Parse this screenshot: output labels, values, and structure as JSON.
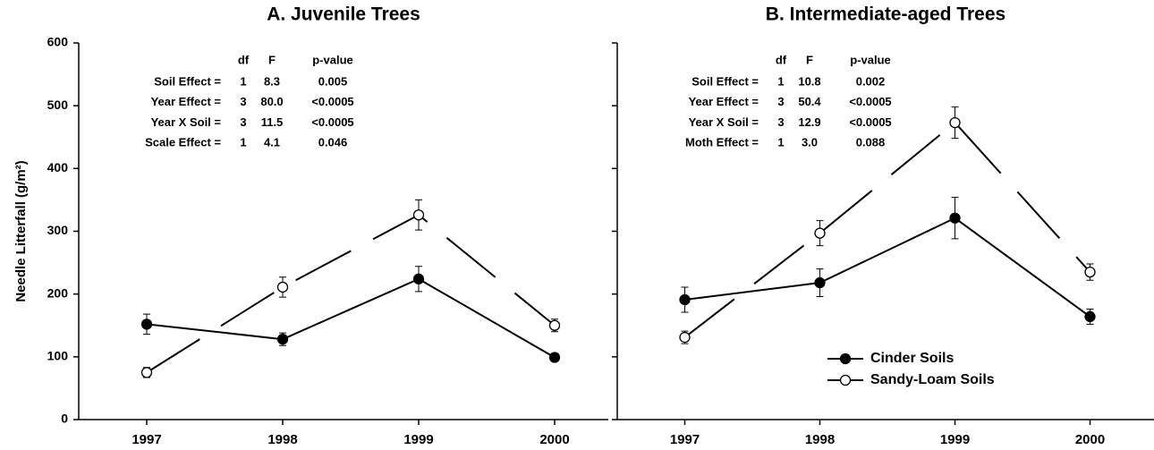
{
  "chart_data": [
    {
      "type": "line",
      "title": "A.  Juvenile Trees",
      "y_label": "Needle Litterfall (g/m²)",
      "categories": [
        "1997",
        "1998",
        "1999",
        "2000"
      ],
      "ylim": [
        0,
        600
      ],
      "yticks": [
        0,
        100,
        200,
        300,
        400,
        500,
        600
      ],
      "show_ytick_labels": true,
      "series": [
        {
          "color": "#000000",
          "marker": "filled",
          "values": [
            152,
            128,
            224,
            99
          ],
          "errors": [
            16,
            10,
            20,
            6
          ]
        },
        {
          "color": "#000000",
          "marker": "open",
          "dashed": true,
          "values": [
            75,
            211,
            326,
            150
          ],
          "errors": [
            8,
            16,
            24,
            10
          ]
        }
      ],
      "stats": {
        "columns": [
          "df",
          "F",
          "p-value"
        ],
        "rows": [
          [
            "Soil Effect =",
            "1",
            "8.3",
            "0.005"
          ],
          [
            "Year Effect =",
            "3",
            "80.0",
            "<0.0005"
          ],
          [
            "Year X Soil =",
            "3",
            "11.5",
            "<0.0005"
          ],
          [
            "Scale Effect =",
            "1",
            "4.1",
            "0.046"
          ]
        ]
      }
    },
    {
      "type": "line",
      "title": "B.  Intermediate-aged Trees",
      "categories": [
        "1997",
        "1998",
        "1999",
        "2000"
      ],
      "ylim": [
        0,
        600
      ],
      "yticks": [
        0,
        100,
        200,
        300,
        400,
        500,
        600
      ],
      "show_ytick_labels": false,
      "legend": "lower right",
      "series": [
        {
          "name": "Cinder Soils",
          "color": "#000000",
          "marker": "filled",
          "values": [
            191,
            218,
            321,
            164
          ],
          "errors": [
            20,
            22,
            33,
            12
          ]
        },
        {
          "name": "Sandy-Loam Soils",
          "color": "#000000",
          "marker": "open",
          "dashed": true,
          "values": [
            131,
            297,
            473,
            235
          ],
          "errors": [
            10,
            20,
            25,
            13
          ]
        }
      ],
      "stats": {
        "columns": [
          "df",
          "F",
          "p-value"
        ],
        "rows": [
          [
            "Soil Effect =",
            "1",
            "10.8",
            "0.002"
          ],
          [
            "Year Effect =",
            "3",
            "50.4",
            "<0.0005"
          ],
          [
            "Year X Soil =",
            "3",
            "12.9",
            "<0.0005"
          ],
          [
            "Moth Effect =",
            "1",
            "3.0",
            "0.088"
          ]
        ]
      }
    }
  ]
}
